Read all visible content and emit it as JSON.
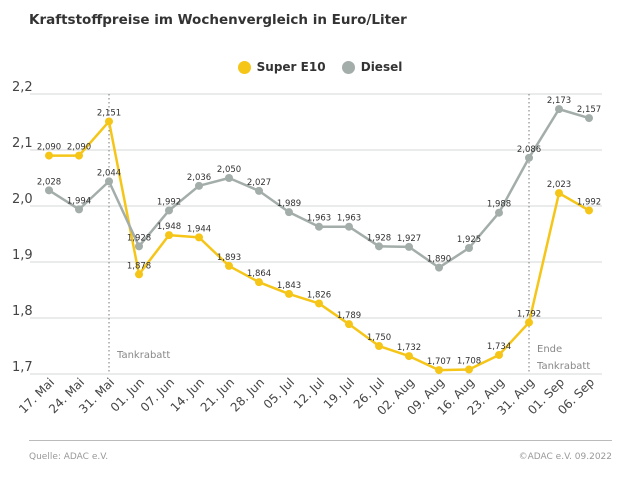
{
  "title": "Kraftstoffpreise im Wochenvergleich in Euro/Liter",
  "source": "Quelle: ADAC e.V.",
  "copyright": "©ADAC e.V.  09.2022",
  "chart_data": {
    "type": "line",
    "title": "Kraftstoffpreise im Wochenvergleich in Euro/Liter",
    "categories": [
      "17. Mai",
      "24. Mai",
      "31. Mai",
      "01. Jun",
      "07. Jun",
      "14. Jun",
      "21. Jun",
      "28. Jun",
      "05. Jul",
      "12. Jul",
      "19. Jul",
      "26. Jul",
      "02. Aug",
      "09. Aug",
      "16. Aug",
      "23. Aug",
      "31. Aug",
      "01. Sep",
      "06. Sep"
    ],
    "ylim": [
      1.7,
      2.2
    ],
    "yticks": [
      "1,7",
      "1,8",
      "1,9",
      "2,0",
      "2,1",
      "2,2"
    ],
    "grid": true,
    "legend": "top-center",
    "series": [
      {
        "name": "Super E10",
        "color": "#f5c518",
        "values": [
          2.09,
          2.09,
          2.151,
          1.878,
          1.948,
          1.944,
          1.893,
          1.864,
          1.843,
          1.826,
          1.789,
          1.75,
          1.732,
          1.707,
          1.708,
          1.734,
          1.792,
          2.023,
          1.992
        ],
        "labels": [
          "2,090",
          "2,090",
          "2,151",
          "1,878",
          "1,948",
          "1,944",
          "1,893",
          "1,864",
          "1,843",
          "1,826",
          "1,789",
          "1,750",
          "1,732",
          "1,707",
          "1,708",
          "1,734",
          "1,792",
          "2,023",
          "1,992"
        ]
      },
      {
        "name": "Diesel",
        "color": "#a3adaa",
        "values": [
          2.028,
          1.994,
          2.044,
          1.928,
          1.992,
          2.036,
          2.05,
          2.027,
          1.989,
          1.963,
          1.963,
          1.928,
          1.927,
          1.89,
          1.925,
          1.988,
          2.086,
          2.173,
          2.157
        ],
        "labels": [
          "2,028",
          "1,994",
          "2,044",
          "1,928",
          "1,992",
          "2,036",
          "2,050",
          "2,027",
          "1,989",
          "1,963",
          "1,963",
          "1,928",
          "1,927",
          "1,890",
          "1,925",
          "1,988",
          "2,086",
          "2,173",
          "2,157"
        ]
      }
    ],
    "annotations": [
      {
        "category": "31. Mai",
        "text": [
          "Tankrabatt"
        ]
      },
      {
        "category": "31. Aug",
        "text": [
          "Ende",
          "Tankrabatt"
        ]
      }
    ]
  }
}
